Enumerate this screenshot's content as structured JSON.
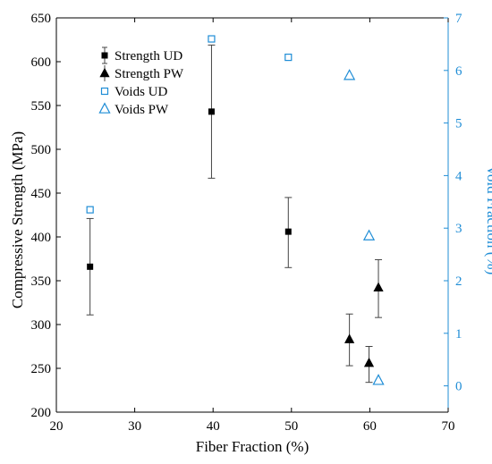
{
  "chart_data": {
    "type": "scatter",
    "title": "",
    "xlabel": "Fiber Fraction (%)",
    "ylabel": "Compressive Strength (MPa)",
    "y2label": "Void Fraction (%)",
    "xlim": [
      20,
      70
    ],
    "ylim": [
      200,
      650
    ],
    "y2lim": [
      -0.5,
      7
    ],
    "xticks": [
      "20",
      "30",
      "40",
      "50",
      "60",
      "70"
    ],
    "yticks": [
      "200",
      "250",
      "300",
      "350",
      "400",
      "450",
      "500",
      "550",
      "600",
      "650"
    ],
    "y2ticks": [
      "0",
      "1",
      "2",
      "3",
      "4",
      "5",
      "6",
      "7"
    ],
    "legend_position": "top-left",
    "colors": {
      "primary": "#000000",
      "secondary": "#1f8dd6"
    },
    "series": [
      {
        "name": "Strength UD",
        "axis": "left",
        "marker": "square-filled",
        "x": [
          24.3,
          39.8,
          49.6
        ],
        "y": [
          366,
          543,
          406
        ],
        "err_low": [
          311,
          467,
          365
        ],
        "err_high": [
          421,
          619,
          445
        ]
      },
      {
        "name": "Strength PW",
        "axis": "left",
        "marker": "triangle-filled",
        "x": [
          57.4,
          59.9,
          61.1
        ],
        "y": [
          283,
          256,
          342
        ],
        "err_low": [
          253,
          234,
          308
        ],
        "err_high": [
          312,
          275,
          374
        ]
      },
      {
        "name": "Voids UD",
        "axis": "right",
        "marker": "square-open",
        "x": [
          24.3,
          39.8,
          49.6
        ],
        "y": [
          3.35,
          6.6,
          6.25
        ]
      },
      {
        "name": "Voids PW",
        "axis": "right",
        "marker": "triangle-open",
        "x": [
          57.4,
          59.9,
          61.1
        ],
        "y": [
          5.9,
          2.85,
          0.1
        ]
      }
    ]
  }
}
